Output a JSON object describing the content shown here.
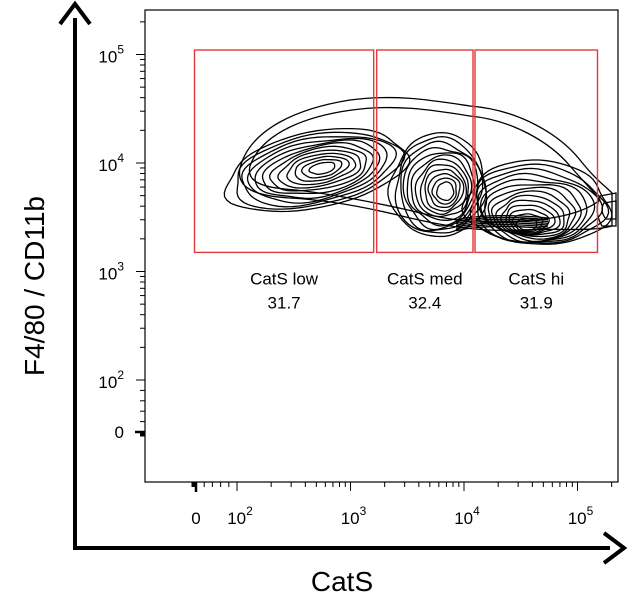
{
  "chart_data": {
    "type": "contour",
    "xlabel": "CatS",
    "ylabel": "F4/80 / CD11b",
    "x_scale": "biexponential",
    "y_scale": "biexponential",
    "x_ticks": [
      {
        "value": 0,
        "base": "0",
        "exp": ""
      },
      {
        "value": 100,
        "base": "10",
        "exp": "2"
      },
      {
        "value": 1000,
        "base": "10",
        "exp": "3"
      },
      {
        "value": 10000,
        "base": "10",
        "exp": "4"
      },
      {
        "value": 100000,
        "base": "10",
        "exp": "5"
      }
    ],
    "y_ticks": [
      {
        "value": 0,
        "base": "0",
        "exp": ""
      },
      {
        "value": 100,
        "base": "10",
        "exp": "2"
      },
      {
        "value": 1000,
        "base": "10",
        "exp": "3"
      },
      {
        "value": 10000,
        "base": "10",
        "exp": "4"
      },
      {
        "value": 100000,
        "base": "10",
        "exp": "5"
      }
    ],
    "gates": [
      {
        "name": "CatS low",
        "value": "31.7",
        "x_range": [
          -30,
          1600
        ],
        "y_range": [
          1500,
          110000
        ]
      },
      {
        "name": "CatS med",
        "value": "32.4",
        "x_range": [
          1700,
          12000
        ],
        "y_range": [
          1500,
          110000
        ]
      },
      {
        "name": "CatS hi",
        "value": "31.9",
        "x_range": [
          12500,
          150000
        ],
        "y_range": [
          1500,
          110000
        ]
      }
    ],
    "populations": [
      {
        "center_x": 420,
        "center_y": 9500
      },
      {
        "center_x": 6500,
        "center_y": 5200
      },
      {
        "center_x": 40000,
        "center_y": 2900
      }
    ],
    "colors": {
      "gate": "#e03a3a",
      "contour": "#000000",
      "axis": "#000000"
    }
  }
}
